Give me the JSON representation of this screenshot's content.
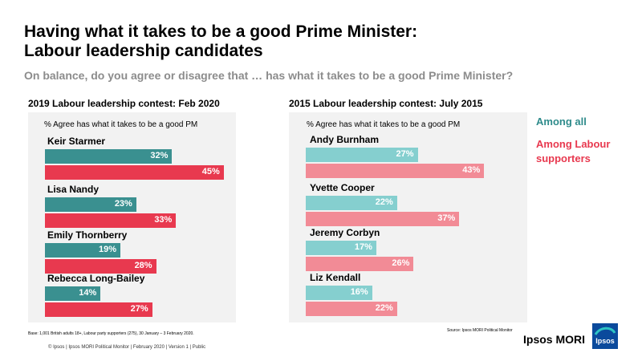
{
  "title_line1": "Having what it takes to be a good Prime Minister:",
  "title_line2": "Labour leadership candidates",
  "subtitle": "On balance, do you agree or disagree that … has what it takes to be a good Prime Minister?",
  "legend": {
    "all": "Among all",
    "labour": "Among Labour supporters"
  },
  "colors": {
    "left_all": "#3a9090",
    "left_labour": "#e8394f",
    "right_all": "#85cfcf",
    "right_labour": "#f28b96"
  },
  "chart_data": [
    {
      "type": "bar",
      "orientation": "horizontal",
      "title": "2019 Labour leadership contest: Feb 2020",
      "subtitle": "% Agree has what it takes to be a good PM",
      "categories": [
        "Keir Starmer",
        "Lisa Nandy",
        "Emily Thornberry",
        "Rebecca Long-Bailey"
      ],
      "series": [
        {
          "name": "Among all",
          "values": [
            32,
            23,
            19,
            14
          ],
          "labels": [
            "32%",
            "23%",
            "19%",
            "14%"
          ]
        },
        {
          "name": "Among Labour supporters",
          "values": [
            45,
            33,
            28,
            27
          ],
          "labels": [
            "45%",
            "33%",
            "28%",
            "27%"
          ]
        }
      ],
      "xlim": [
        0,
        50
      ]
    },
    {
      "type": "bar",
      "orientation": "horizontal",
      "title": "2015 Labour leadership contest: July 2015",
      "subtitle": "% Agree has what it takes to be a good PM",
      "categories": [
        "Andy Burnham",
        "Yvette Cooper",
        "Jeremy Corbyn",
        "Liz Kendall"
      ],
      "series": [
        {
          "name": "Among all",
          "values": [
            27,
            22,
            17,
            16
          ],
          "labels": [
            "27%",
            "22%",
            "17%",
            "16%"
          ]
        },
        {
          "name": "Among Labour supporters",
          "values": [
            43,
            37,
            26,
            22
          ],
          "labels": [
            "43%",
            "37%",
            "26%",
            "22%"
          ]
        }
      ],
      "xlim": [
        0,
        50
      ]
    }
  ],
  "footer": {
    "base": "Base: 1,001 British adults 18+, Labour party supporters (275), 30 January – 3 February 2020.",
    "source": "Source: Ipsos MORI Political Monitor",
    "copyright": "© Ipsos | Ipsos MORI Political Monitor | February 2020 | Version 1 | Public",
    "brand": "Ipsos MORI",
    "logo_text": "Ipsos"
  }
}
